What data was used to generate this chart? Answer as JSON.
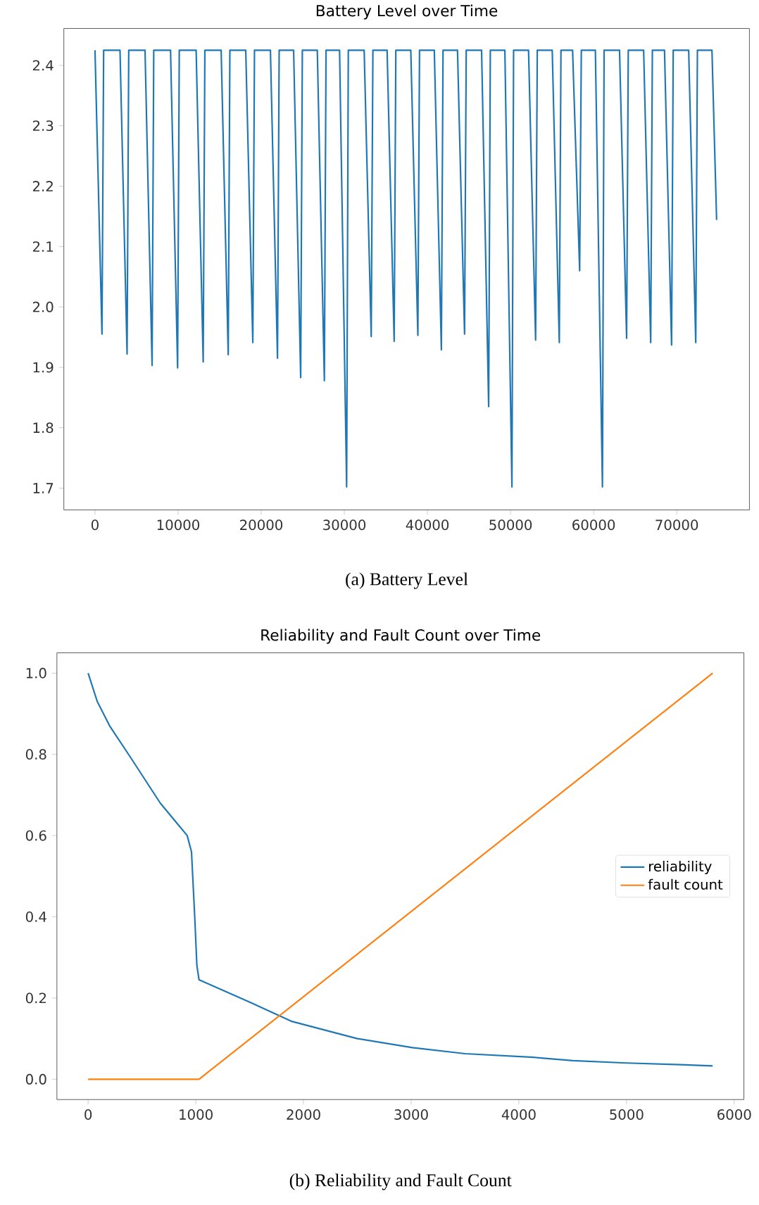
{
  "chart_data": [
    {
      "type": "line",
      "title": "Battery Level over Time",
      "annotations": [
        "(a) Battery Level"
      ],
      "grid": false,
      "legend": false,
      "marker": "none",
      "xlim": [
        -3750,
        78750
      ],
      "ylim": [
        1.664,
        2.461
      ],
      "xticks": [
        0,
        10000,
        20000,
        30000,
        40000,
        50000,
        60000,
        70000
      ],
      "yticks": [
        1.7,
        1.8,
        1.9,
        {
          "value": 2.0,
          "label": "2.0"
        },
        2.1,
        2.2,
        2.3,
        2.4
      ],
      "series": [
        {
          "color": "#1f77b4",
          "x": [
            0,
            840,
            1040,
            3010,
            3860,
            4060,
            6020,
            6870,
            7070,
            9090,
            9940,
            10140,
            12170,
            13020,
            13220,
            15180,
            16030,
            16230,
            18140,
            18990,
            19190,
            21110,
            21960,
            22160,
            23900,
            24750,
            24950,
            26750,
            27600,
            27800,
            29430,
            30280,
            30480,
            32390,
            33240,
            33440,
            35150,
            36000,
            36200,
            38000,
            38850,
            39050,
            40830,
            41680,
            41880,
            43620,
            44470,
            44670,
            46520,
            47370,
            47570,
            49320,
            50170,
            50370,
            52170,
            53020,
            53220,
            55020,
            55870,
            56070,
            57470,
            58320,
            58520,
            60210,
            61060,
            61260,
            63120,
            63970,
            64170,
            66020,
            66870,
            67070,
            68530,
            69380,
            69580,
            71440,
            72290,
            72490,
            74240,
            74800
          ],
          "values": [
            2.425,
            1.955,
            2.425,
            2.425,
            1.922,
            2.425,
            2.425,
            1.903,
            2.425,
            2.425,
            1.899,
            2.425,
            2.425,
            1.909,
            2.425,
            2.425,
            1.921,
            2.425,
            2.425,
            1.941,
            2.425,
            2.425,
            1.915,
            2.425,
            2.425,
            1.883,
            2.425,
            2.425,
            1.878,
            2.425,
            2.425,
            1.702,
            2.425,
            2.425,
            1.951,
            2.425,
            2.425,
            1.943,
            2.425,
            2.425,
            1.953,
            2.425,
            2.425,
            1.929,
            2.425,
            2.425,
            1.955,
            2.425,
            2.425,
            1.835,
            2.425,
            2.425,
            1.702,
            2.425,
            2.425,
            1.945,
            2.425,
            2.425,
            1.941,
            2.425,
            2.425,
            2.06,
            2.425,
            2.425,
            1.702,
            2.425,
            2.425,
            1.948,
            2.425,
            2.425,
            1.941,
            2.425,
            2.425,
            1.937,
            2.425,
            2.425,
            1.941,
            2.425,
            2.425,
            2.144
          ]
        }
      ]
    },
    {
      "type": "line",
      "title": "Reliability and Fault Count over Time",
      "annotations": [
        "(b) Reliability and Fault Count"
      ],
      "grid": false,
      "legend": "right",
      "marker": "none",
      "xlim": [
        -290,
        6090
      ],
      "ylim": [
        -0.05,
        1.05
      ],
      "xticks": [
        0,
        1000,
        2000,
        3000,
        4000,
        5000,
        6000
      ],
      "yticks": [
        {
          "value": 0,
          "label": "0.0"
        },
        0.2,
        0.4,
        0.6,
        0.8,
        {
          "value": 1,
          "label": "1.0"
        }
      ],
      "series": [
        {
          "name": "reliability",
          "color": "#1f77b4",
          "x": [
            0,
            85,
            200,
            400,
            670,
            920,
            960,
            990,
            1010,
            1030,
            1500,
            1885,
            2500,
            3010,
            3500,
            4134,
            4500,
            5000,
            5500,
            5800
          ],
          "values": [
            1.0,
            0.93,
            0.87,
            0.79,
            0.68,
            0.6,
            0.56,
            0.4,
            0.28,
            0.245,
            0.19,
            0.143,
            0.1,
            0.078,
            0.063,
            0.054,
            0.046,
            0.04,
            0.036,
            0.033
          ]
        },
        {
          "name": "fault count",
          "color": "#ff7f0e",
          "x": [
            0,
            1030,
            5800
          ],
          "values": [
            0,
            0,
            1.0
          ]
        }
      ]
    }
  ]
}
